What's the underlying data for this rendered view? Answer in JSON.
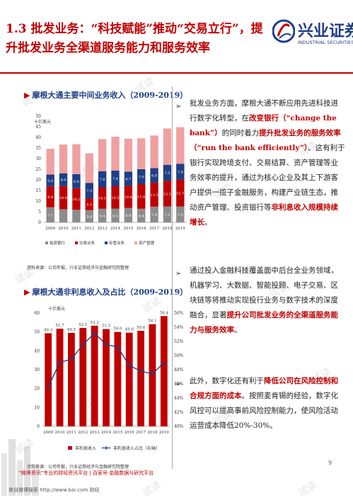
{
  "slide": {
    "title": "1.3 批发业务：“科技赋能”推动“交易立行”，提升批发业务全渠道服务能力和服务效率",
    "page_number": "9"
  },
  "logo": {
    "name_cn": "兴业证券",
    "name_en": "INDUSTRIAL SECURITIES"
  },
  "watermark": "试读",
  "colors": {
    "accent": "#c00000",
    "navy": "#1f3e86",
    "gray": "#8c8c8c",
    "lightred": "#f0a0a0"
  },
  "charts": {
    "one": {
      "title": "摩根大通主要中间业务收入（2009-2019）",
      "source": "资料来源：公司年报，兴业证券经济与金融研究院整理"
    },
    "two": {
      "title": "摩根大通非利息收入及占比（2009-2019）",
      "source": "资料来源：公司年报，兴业证券经济与金融研究院整理"
    }
  },
  "bullets": [
    {
      "p1": "批发业务方面，摩根大通不断应用先进科技进行数字化转型，在",
      "h1": "改变银行（“change the bank”）",
      "p2": "的同时着力",
      "h2": "提升批发业务的服务效率（“run the bank efficiently”）",
      "p3": "。这有利于银行实现跨境支付、交易结算、资产管理等业务效率的提升，通过为核心企业及其上下游客户提供一揽子金融服务，构建产业链生态，推动资产管理、投资银行等",
      "h3": "非利息收入规模持续增长",
      "p4": "。"
    },
    {
      "p1": "通过投入金融科技覆盖面中后台全业务领域，机器学习、大数据、智能投顾、电子交易、区块链等将推动实现投行业务与数字技术的深度融合，显著",
      "h1": "提升公司批发业务的全渠道服务能力与服务效率",
      "p2": "。"
    },
    {
      "p1": "此外，数字化还有利于",
      "h1": "降低公司在风险控制和合规方面的成本",
      "p2": "。按照麦肯锡的经验，数字化风控可以提高事前风险控制能力，使风险活动运营成本降低20%-30%。"
    }
  ],
  "footer": {
    "line1": "“微博资讯”专业的财经资讯平台 | 百家号·金融数据与研究平台",
    "line2": "来自微博搜索 http://www.bai.com 财经"
  },
  "chart_data": [
    {
      "type": "bar",
      "stacked": true,
      "title": "摩根大通主要中间业务收入（2009-2019）",
      "unit": "十亿美元",
      "categories": [
        "2009",
        "2010",
        "2011",
        "2012",
        "2013",
        "2014",
        "2015",
        "2016",
        "2017",
        "2018",
        "2019"
      ],
      "ylim": [
        0,
        50
      ],
      "yticks": [
        0,
        5,
        10,
        15,
        20,
        25,
        30,
        35,
        40,
        45,
        50
      ],
      "series": [
        {
          "name": "投资银行",
          "values": [
            7.1,
            6.2,
            5.9,
            5.8,
            6.4,
            6.5,
            6.8,
            6.4,
            7.4,
            7.5,
            7.5
          ]
        },
        {
          "name": "交易业务",
          "values": [
            9.8,
            10.9,
            10.2,
            5.5,
            10.1,
            10.5,
            10.4,
            11.6,
            11.3,
            12.1,
            12.7
          ]
        },
        {
          "name": "存管业务",
          "values": [
            5.6,
            6.0,
            6.6,
            7.3,
            7.6,
            7.4,
            6.7,
            7.0,
            6.8,
            7.5,
            7.4
          ]
        },
        {
          "name": "资产管理",
          "values": [
            12.1,
            13.5,
            14.1,
            13.9,
            15.1,
            15.9,
            15.5,
            14.6,
            15.4,
            17.1,
            17.2
          ]
        }
      ],
      "colors": [
        "#8c8c8c",
        "#c00000",
        "#1f3e86",
        "#f0a0a0"
      ],
      "legend_position": "bottom",
      "data_labels_shown": [
        {
          "series": 0,
          "labels": [
            "7.1",
            "",
            "",
            "5.8",
            "6.4",
            "6.5",
            "6.8",
            "6.4",
            "7.4",
            "7.5",
            "7.5"
          ]
        },
        {
          "series": 1,
          "labels": [
            "9.8",
            "10.9",
            "10.2",
            "5.5",
            "10.1",
            "10.5",
            "10.4",
            "11.6",
            "11.3",
            "12.1",
            "12.7"
          ]
        },
        {
          "series": 2,
          "labels": [
            "5.6",
            "6.0",
            "6.6",
            "7.3",
            "7.6",
            "7.4",
            "6.7",
            "7.0",
            "6.8",
            "7.5",
            "7.4"
          ]
        }
      ]
    },
    {
      "type": "bar+line",
      "title": "摩根大通非利息收入及占比（2009-2019）",
      "unit": "十亿美元",
      "categories": [
        "2009",
        "2010",
        "2011",
        "2012",
        "2013",
        "2014",
        "2015",
        "2016",
        "2017",
        "2018",
        "2019"
      ],
      "ylim_left": [
        0,
        60
      ],
      "yticks_left": [
        0,
        10,
        20,
        30,
        40,
        50,
        60
      ],
      "ylim_right": [
        0.4,
        0.56
      ],
      "yticks_right": [
        "40%",
        "42%",
        "44%",
        "46%",
        "48%",
        "50%",
        "52%",
        "54%",
        "56%"
      ],
      "series": [
        {
          "name": "非利息收入",
          "type": "bar",
          "axis": "left",
          "values": [
            49.3,
            51.7,
            49.5,
            52.1,
            53.3,
            51.5,
            50.0,
            49.6,
            50.6,
            54.1,
            58.4
          ],
          "labels": [
            "49.3",
            "51.7",
            "49.5",
            "52.1",
            "53.3",
            "51.5",
            "50.0",
            "49.6",
            "50.6",
            "54.1",
            "58.4"
          ]
        },
        {
          "name": "非利息收入占比（右轴）",
          "type": "line",
          "axis": "right",
          "values": [
            0.4554,
            0.4905,
            0.4946,
            0.5154,
            0.5316,
            0.5155,
            0.5121,
            0.4859,
            0.478,
            0.4741,
            0.4899
          ]
        }
      ],
      "colors": [
        "#c00000",
        "#1f3e86"
      ],
      "legend_position": "bottom"
    }
  ]
}
